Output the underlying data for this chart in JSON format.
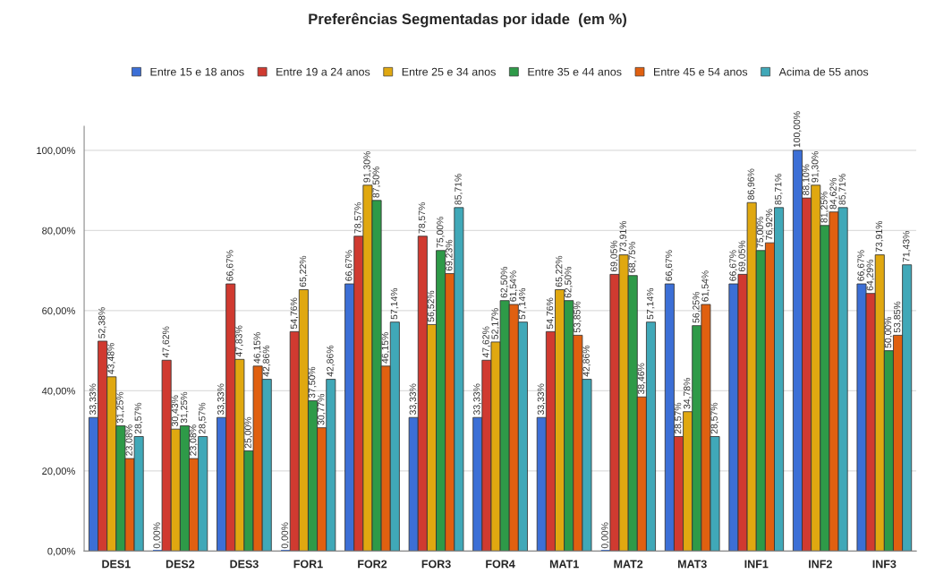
{
  "chart_data": {
    "type": "bar",
    "title": "Preferências Segmentadas por idade  (em %)",
    "categories": [
      "DES1",
      "DES2",
      "DES3",
      "FOR1",
      "FOR2",
      "FOR3",
      "FOR4",
      "MAT1",
      "MAT2",
      "MAT3",
      "INF1",
      "INF2",
      "INF3"
    ],
    "series": [
      {
        "name": "Entre 15 e 18 anos",
        "color": "#3c6fd6",
        "values": [
          33.33,
          0,
          33.33,
          0,
          66.67,
          33.33,
          33.33,
          33.33,
          0,
          66.67,
          66.67,
          100,
          66.67
        ],
        "value_labels": [
          "33,33%",
          "0,00%",
          "33,33%",
          "0,00%",
          "66,67%",
          "33,33%",
          "33,33%",
          "33,33%",
          "0,00%",
          "66,67%",
          "66,67%",
          "100,00%",
          "66,67%"
        ]
      },
      {
        "name": "Entre 19 a 24 anos",
        "color": "#d03a30",
        "values": [
          52.38,
          47.62,
          66.67,
          54.76,
          78.57,
          78.57,
          47.62,
          54.76,
          69.05,
          28.57,
          69.05,
          88.1,
          64.29
        ],
        "value_labels": [
          "52,38%",
          "47,62%",
          "66,67%",
          "54,76%",
          "78,57%",
          "78,57%",
          "47,62%",
          "54,76%",
          "69,05%",
          "28,57%",
          "69,05%",
          "88,10%",
          "64,29%"
        ]
      },
      {
        "name": "Entre 25 e 34 anos",
        "color": "#e0a810",
        "values": [
          43.48,
          30.43,
          47.83,
          65.22,
          91.3,
          56.52,
          52.17,
          65.22,
          73.91,
          34.78,
          86.96,
          91.3,
          73.91
        ],
        "value_labels": [
          "43,48%",
          "30,43%",
          "47,83%",
          "65,22%",
          "91,30%",
          "56,52%",
          "52,17%",
          "65,22%",
          "73,91%",
          "34,78%",
          "86,96%",
          "91,30%",
          "73,91%"
        ]
      },
      {
        "name": "Entre 35 e 44 anos",
        "color": "#2e9a48",
        "values": [
          31.25,
          31.25,
          25.0,
          37.5,
          87.5,
          75.0,
          62.5,
          62.5,
          68.75,
          56.25,
          75.0,
          81.25,
          50.0
        ],
        "value_labels": [
          "31,25%",
          "31,25%",
          "25,00%",
          "37,50%",
          "87,50%",
          "75,00%",
          "62,50%",
          "62,50%",
          "68,75%",
          "56,25%",
          "75,00%",
          "81,25%",
          "50,00%"
        ]
      },
      {
        "name": "Entre 45 e 54 anos",
        "color": "#e06010",
        "values": [
          23.08,
          23.08,
          46.15,
          30.77,
          46.15,
          69.23,
          61.54,
          53.85,
          38.46,
          61.54,
          76.92,
          84.62,
          53.85
        ],
        "value_labels": [
          "23,08%",
          "23,08%",
          "46,15%",
          "30,77%",
          "46,15%",
          "69,23%",
          "61,54%",
          "53,85%",
          "38,46%",
          "61,54%",
          "76,92%",
          "84,62%",
          "53,85%"
        ]
      },
      {
        "name": "Acima de 55 anos",
        "color": "#40a8b8",
        "values": [
          28.57,
          28.57,
          42.86,
          42.86,
          57.14,
          85.71,
          57.14,
          42.86,
          57.14,
          28.57,
          85.71,
          85.71,
          71.43
        ],
        "value_labels": [
          "28,57%",
          "28,57%",
          "42,86%",
          "42,86%",
          "57,14%",
          "85,71%",
          "57,14%",
          "42,86%",
          "57,14%",
          "28,57%",
          "85,71%",
          "85,71%",
          "71,43%"
        ]
      }
    ],
    "ylim": [
      0,
      106
    ],
    "yticks": [
      {
        "value": 0,
        "label": "0,00%"
      },
      {
        "value": 20,
        "label": "20,00%"
      },
      {
        "value": 40,
        "label": "40,00%"
      },
      {
        "value": 60,
        "label": "60,00%"
      },
      {
        "value": 80,
        "label": "80,00%"
      },
      {
        "value": 100,
        "label": "100,00%"
      }
    ],
    "grid": "y",
    "legend": "top"
  }
}
